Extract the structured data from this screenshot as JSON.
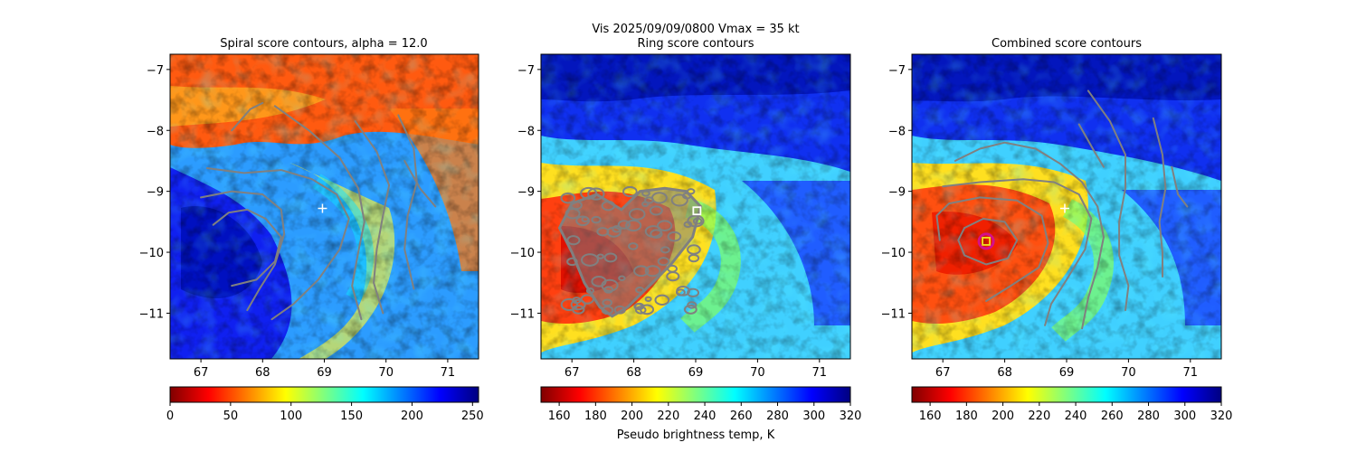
{
  "figure": {
    "suptitle": "Vis  2025/09/09/0800    Vmax = 35 kt",
    "colorbar_label": "Pseudo brightness temp, K"
  },
  "colors": {
    "contour": "#808080",
    "marker_white": "#ffffff",
    "best_ring": "#d4108a",
    "best_square": "#f0e020"
  },
  "chart_data": [
    {
      "type": "heatmap",
      "title": "Spiral score contours, alpha = 12.0",
      "xlim": [
        66.5,
        71.5
      ],
      "ylim": [
        -11.75,
        -6.75
      ],
      "xticks": [
        67,
        68,
        69,
        70,
        71
      ],
      "yticks": [
        -7,
        -8,
        -9,
        -10,
        -11
      ],
      "colorbar": {
        "min": 0,
        "max": 255,
        "ticks": [
          0,
          50,
          100,
          150,
          200,
          250
        ],
        "colormap": "jet_r"
      },
      "markers": [
        {
          "kind": "plus",
          "x": 68.97,
          "y": -9.28
        }
      ],
      "contours": [
        [
          [
            67.2,
            -9.55
          ],
          [
            67.45,
            -9.35
          ],
          [
            67.75,
            -9.3
          ],
          [
            68.05,
            -9.45
          ],
          [
            68.3,
            -9.75
          ],
          [
            68.2,
            -10.15
          ],
          [
            67.9,
            -10.45
          ],
          [
            67.5,
            -10.55
          ]
        ],
        [
          [
            67.0,
            -9.1
          ],
          [
            67.5,
            -9.0
          ],
          [
            68.0,
            -9.05
          ],
          [
            68.3,
            -9.3
          ],
          [
            68.35,
            -9.7
          ],
          [
            68.2,
            -10.2
          ],
          [
            67.95,
            -10.6
          ],
          [
            67.75,
            -10.95
          ]
        ],
        [
          [
            67.1,
            -8.62
          ],
          [
            67.7,
            -8.7
          ],
          [
            68.3,
            -8.65
          ],
          [
            68.8,
            -8.8
          ],
          [
            69.2,
            -9.05
          ],
          [
            69.4,
            -9.45
          ],
          [
            69.25,
            -9.95
          ],
          [
            68.9,
            -10.45
          ],
          [
            68.5,
            -10.85
          ],
          [
            68.15,
            -11.1
          ]
        ],
        [
          [
            68.2,
            -7.6
          ],
          [
            68.75,
            -8.0
          ],
          [
            69.25,
            -8.45
          ],
          [
            69.55,
            -8.95
          ],
          [
            69.65,
            -9.5
          ],
          [
            69.55,
            -10.0
          ],
          [
            69.45,
            -10.55
          ],
          [
            69.6,
            -11.1
          ]
        ],
        [
          [
            69.5,
            -7.85
          ],
          [
            69.85,
            -8.35
          ],
          [
            70.05,
            -8.9
          ],
          [
            69.95,
            -9.4
          ],
          [
            69.85,
            -9.95
          ],
          [
            69.8,
            -10.5
          ],
          [
            69.95,
            -11.0
          ]
        ],
        [
          [
            70.2,
            -7.75
          ],
          [
            70.45,
            -8.3
          ],
          [
            70.5,
            -8.85
          ],
          [
            70.35,
            -9.4
          ],
          [
            70.3,
            -9.95
          ],
          [
            70.45,
            -10.6
          ]
        ],
        [
          [
            70.3,
            -8.5
          ],
          [
            70.55,
            -8.95
          ],
          [
            70.8,
            -9.25
          ]
        ],
        [
          [
            67.5,
            -8.0
          ],
          [
            67.8,
            -7.65
          ],
          [
            68.0,
            -7.55
          ]
        ]
      ]
    },
    {
      "type": "heatmap",
      "title": "Ring score contours",
      "xlim": [
        66.5,
        71.5
      ],
      "ylim": [
        -11.75,
        -6.75
      ],
      "xticks": [
        67,
        68,
        69,
        70,
        71
      ],
      "yticks": [
        -7,
        -8,
        -9,
        -10,
        -11
      ],
      "colorbar": {
        "min": 150,
        "max": 320,
        "ticks": [
          160,
          180,
          200,
          220,
          240,
          260,
          280,
          300,
          320
        ],
        "colormap": "jet_r"
      },
      "markers": [
        {
          "kind": "square",
          "x": 69.02,
          "y": -9.32
        }
      ],
      "contour_region": [
        [
          67.0,
          -9.2
        ],
        [
          67.4,
          -9.05
        ],
        [
          67.8,
          -9.3
        ],
        [
          68.1,
          -9.0
        ],
        [
          68.5,
          -8.95
        ],
        [
          68.85,
          -9.0
        ],
        [
          69.08,
          -9.25
        ],
        [
          68.95,
          -9.75
        ],
        [
          68.6,
          -10.2
        ],
        [
          68.2,
          -10.6
        ],
        [
          67.9,
          -10.9
        ],
        [
          67.65,
          -11.05
        ],
        [
          67.45,
          -10.9
        ],
        [
          67.2,
          -10.5
        ],
        [
          67.0,
          -10.0
        ],
        [
          66.8,
          -9.6
        ]
      ]
    },
    {
      "type": "heatmap",
      "title": "Combined score contours",
      "xlim": [
        66.5,
        71.5
      ],
      "ylim": [
        -11.75,
        -6.75
      ],
      "xticks": [
        67,
        68,
        69,
        70,
        71
      ],
      "yticks": [
        -7,
        -8,
        -9,
        -10,
        -11
      ],
      "colorbar": {
        "min": 150,
        "max": 320,
        "ticks": [
          160,
          180,
          200,
          220,
          240,
          260,
          280,
          300,
          320
        ],
        "colormap": "jet_r"
      },
      "markers": [
        {
          "kind": "plus",
          "x": 68.97,
          "y": -9.28
        },
        {
          "kind": "ring",
          "x": 67.7,
          "y": -9.82
        },
        {
          "kind": "square",
          "x": 67.7,
          "y": -9.82
        }
      ],
      "contours": [
        [
          [
            67.35,
            -9.6
          ],
          [
            67.65,
            -9.45
          ],
          [
            68.0,
            -9.5
          ],
          [
            68.2,
            -9.8
          ],
          [
            68.05,
            -10.1
          ],
          [
            67.7,
            -10.2
          ],
          [
            67.35,
            -10.05
          ],
          [
            67.25,
            -9.8
          ],
          [
            67.35,
            -9.6
          ]
        ],
        [
          [
            66.95,
            -9.8
          ],
          [
            66.9,
            -9.4
          ],
          [
            67.1,
            -9.2
          ],
          [
            67.6,
            -9.1
          ],
          [
            68.2,
            -9.15
          ],
          [
            68.6,
            -9.4
          ],
          [
            68.7,
            -9.85
          ],
          [
            68.55,
            -10.25
          ],
          [
            68.1,
            -10.55
          ],
          [
            67.7,
            -10.8
          ]
        ],
        [
          [
            67.0,
            -8.92
          ],
          [
            67.6,
            -8.85
          ],
          [
            68.3,
            -8.8
          ],
          [
            68.8,
            -8.85
          ],
          [
            69.2,
            -9.05
          ],
          [
            69.4,
            -9.45
          ],
          [
            69.3,
            -9.95
          ],
          [
            69.0,
            -10.45
          ],
          [
            68.75,
            -10.85
          ],
          [
            68.65,
            -11.2
          ]
        ],
        [
          [
            67.2,
            -8.5
          ],
          [
            67.6,
            -8.3
          ],
          [
            68.0,
            -8.2
          ],
          [
            68.5,
            -8.3
          ],
          [
            68.9,
            -8.55
          ],
          [
            69.25,
            -8.85
          ],
          [
            69.5,
            -9.25
          ],
          [
            69.6,
            -9.75
          ],
          [
            69.5,
            -10.25
          ],
          [
            69.35,
            -10.75
          ],
          [
            69.25,
            -11.25
          ]
        ],
        [
          [
            69.35,
            -7.35
          ],
          [
            69.7,
            -7.85
          ],
          [
            69.95,
            -8.4
          ],
          [
            69.95,
            -8.95
          ],
          [
            69.85,
            -9.5
          ],
          [
            69.85,
            -10.05
          ],
          [
            70.0,
            -10.55
          ],
          [
            69.95,
            -10.95
          ]
        ],
        [
          [
            70.4,
            -7.8
          ],
          [
            70.55,
            -8.4
          ],
          [
            70.6,
            -8.95
          ],
          [
            70.5,
            -9.5
          ],
          [
            70.55,
            -10.0
          ],
          [
            70.55,
            -10.4
          ]
        ],
        [
          [
            69.2,
            -7.9
          ],
          [
            69.45,
            -8.35
          ],
          [
            69.6,
            -8.6
          ]
        ],
        [
          [
            70.7,
            -8.6
          ],
          [
            70.8,
            -9.05
          ],
          [
            70.95,
            -9.25
          ]
        ]
      ]
    }
  ]
}
